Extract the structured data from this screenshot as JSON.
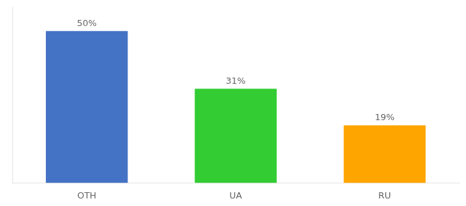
{
  "chart_data": {
    "type": "bar",
    "categories": [
      "OTH",
      "UA",
      "RU"
    ],
    "values": [
      50,
      31,
      19
    ],
    "value_labels": [
      "50%",
      "31%",
      "19%"
    ],
    "data_labels": true,
    "colors": [
      "#4472C4",
      "#33CC33",
      "#FFA500"
    ],
    "ylim": [
      0,
      58
    ],
    "tick_labels": "x",
    "grid": false
  }
}
